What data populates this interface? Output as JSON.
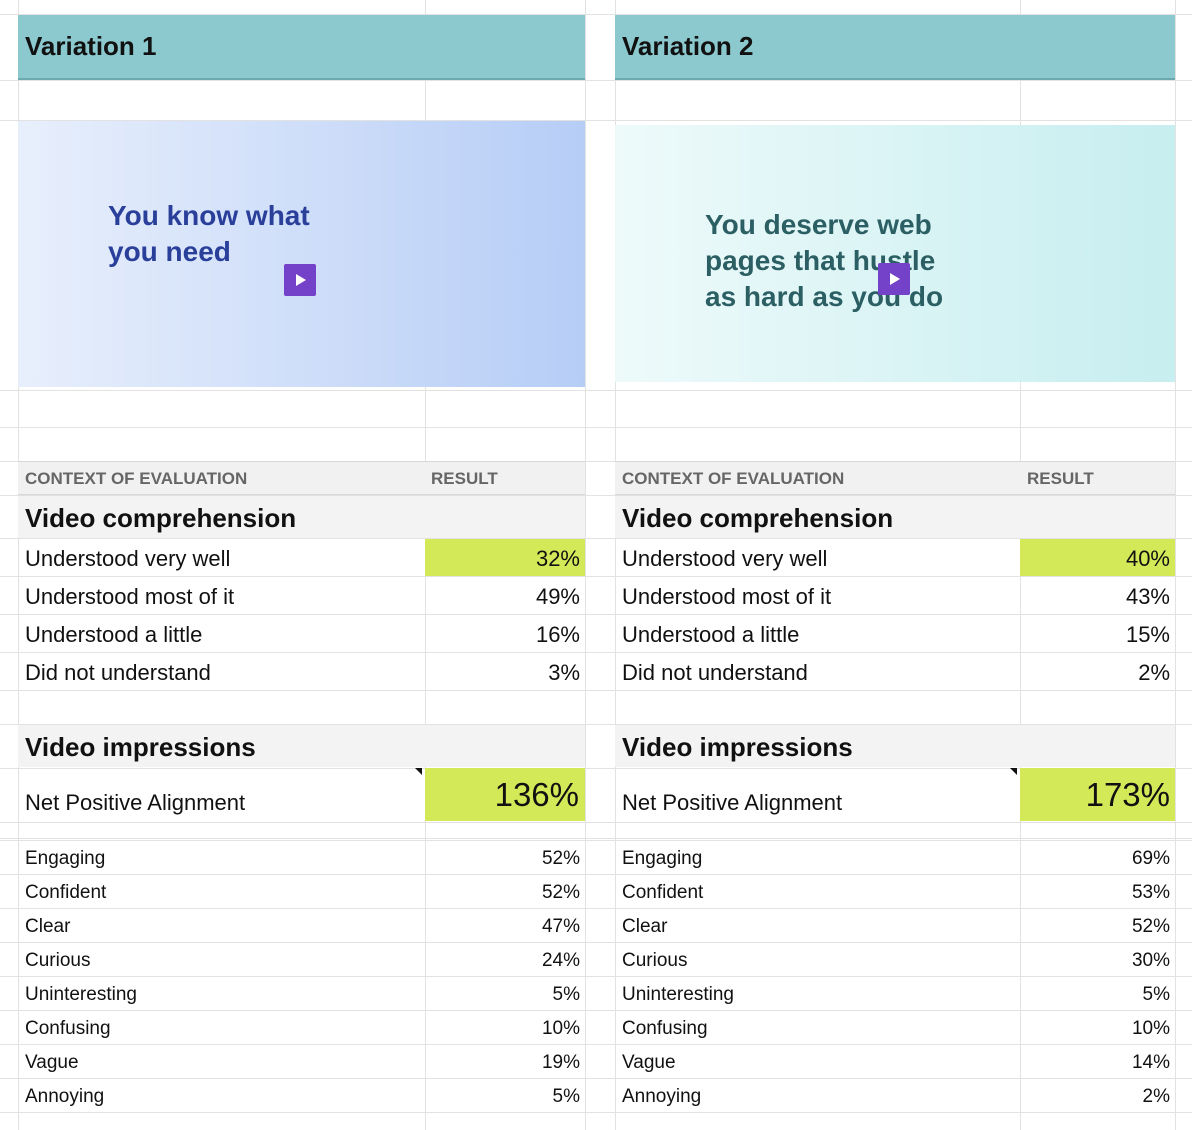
{
  "headers": {
    "context": "CONTEXT OF EVALUATION",
    "result": "RESULT"
  },
  "variations": [
    {
      "title": "Variation 1",
      "thumbnail_text": "You know what\nyou need",
      "thumbnail_color": "#2a3f9a",
      "comprehension_title": "Video comprehension",
      "comprehension": [
        {
          "label": "Understood very well",
          "value": "32%",
          "highlight": true
        },
        {
          "label": "Understood most of it",
          "value": "49%"
        },
        {
          "label": "Understood a little",
          "value": "16%"
        },
        {
          "label": "Did not understand",
          "value": "3%"
        }
      ],
      "impressions_title": "Video impressions",
      "net_positive": {
        "label": "Net Positive Alignment",
        "value": "136%"
      },
      "impressions": [
        {
          "label": "Engaging",
          "value": "52%"
        },
        {
          "label": "Confident",
          "value": "52%"
        },
        {
          "label": "Clear",
          "value": "47%"
        },
        {
          "label": "Curious",
          "value": "24%"
        },
        {
          "label": "Uninteresting",
          "value": "5%"
        },
        {
          "label": "Confusing",
          "value": "10%"
        },
        {
          "label": "Vague",
          "value": "19%"
        },
        {
          "label": "Annoying",
          "value": "5%"
        }
      ]
    },
    {
      "title": "Variation 2",
      "thumbnail_text": "You deserve web\npages that hustle\nas hard as you do",
      "thumbnail_color": "#2b5f63",
      "comprehension_title": "Video comprehension",
      "comprehension": [
        {
          "label": "Understood very well",
          "value": "40%",
          "highlight": true
        },
        {
          "label": "Understood most of it",
          "value": "43%"
        },
        {
          "label": "Understood a little",
          "value": "15%"
        },
        {
          "label": "Did not understand",
          "value": "2%"
        }
      ],
      "impressions_title": "Video impressions",
      "net_positive": {
        "label": "Net Positive Alignment",
        "value": "173%"
      },
      "impressions": [
        {
          "label": "Engaging",
          "value": "69%"
        },
        {
          "label": "Confident",
          "value": "53%"
        },
        {
          "label": "Clear",
          "value": "52%"
        },
        {
          "label": "Curious",
          "value": "30%"
        },
        {
          "label": "Uninteresting",
          "value": "5%"
        },
        {
          "label": "Confusing",
          "value": "10%"
        },
        {
          "label": "Vague",
          "value": "14%"
        },
        {
          "label": "Annoying",
          "value": "2%"
        }
      ]
    }
  ],
  "colors": {
    "header_teal": "#8bc9cf",
    "highlight_green": "#d4e958",
    "play_button": "#7442c8"
  }
}
